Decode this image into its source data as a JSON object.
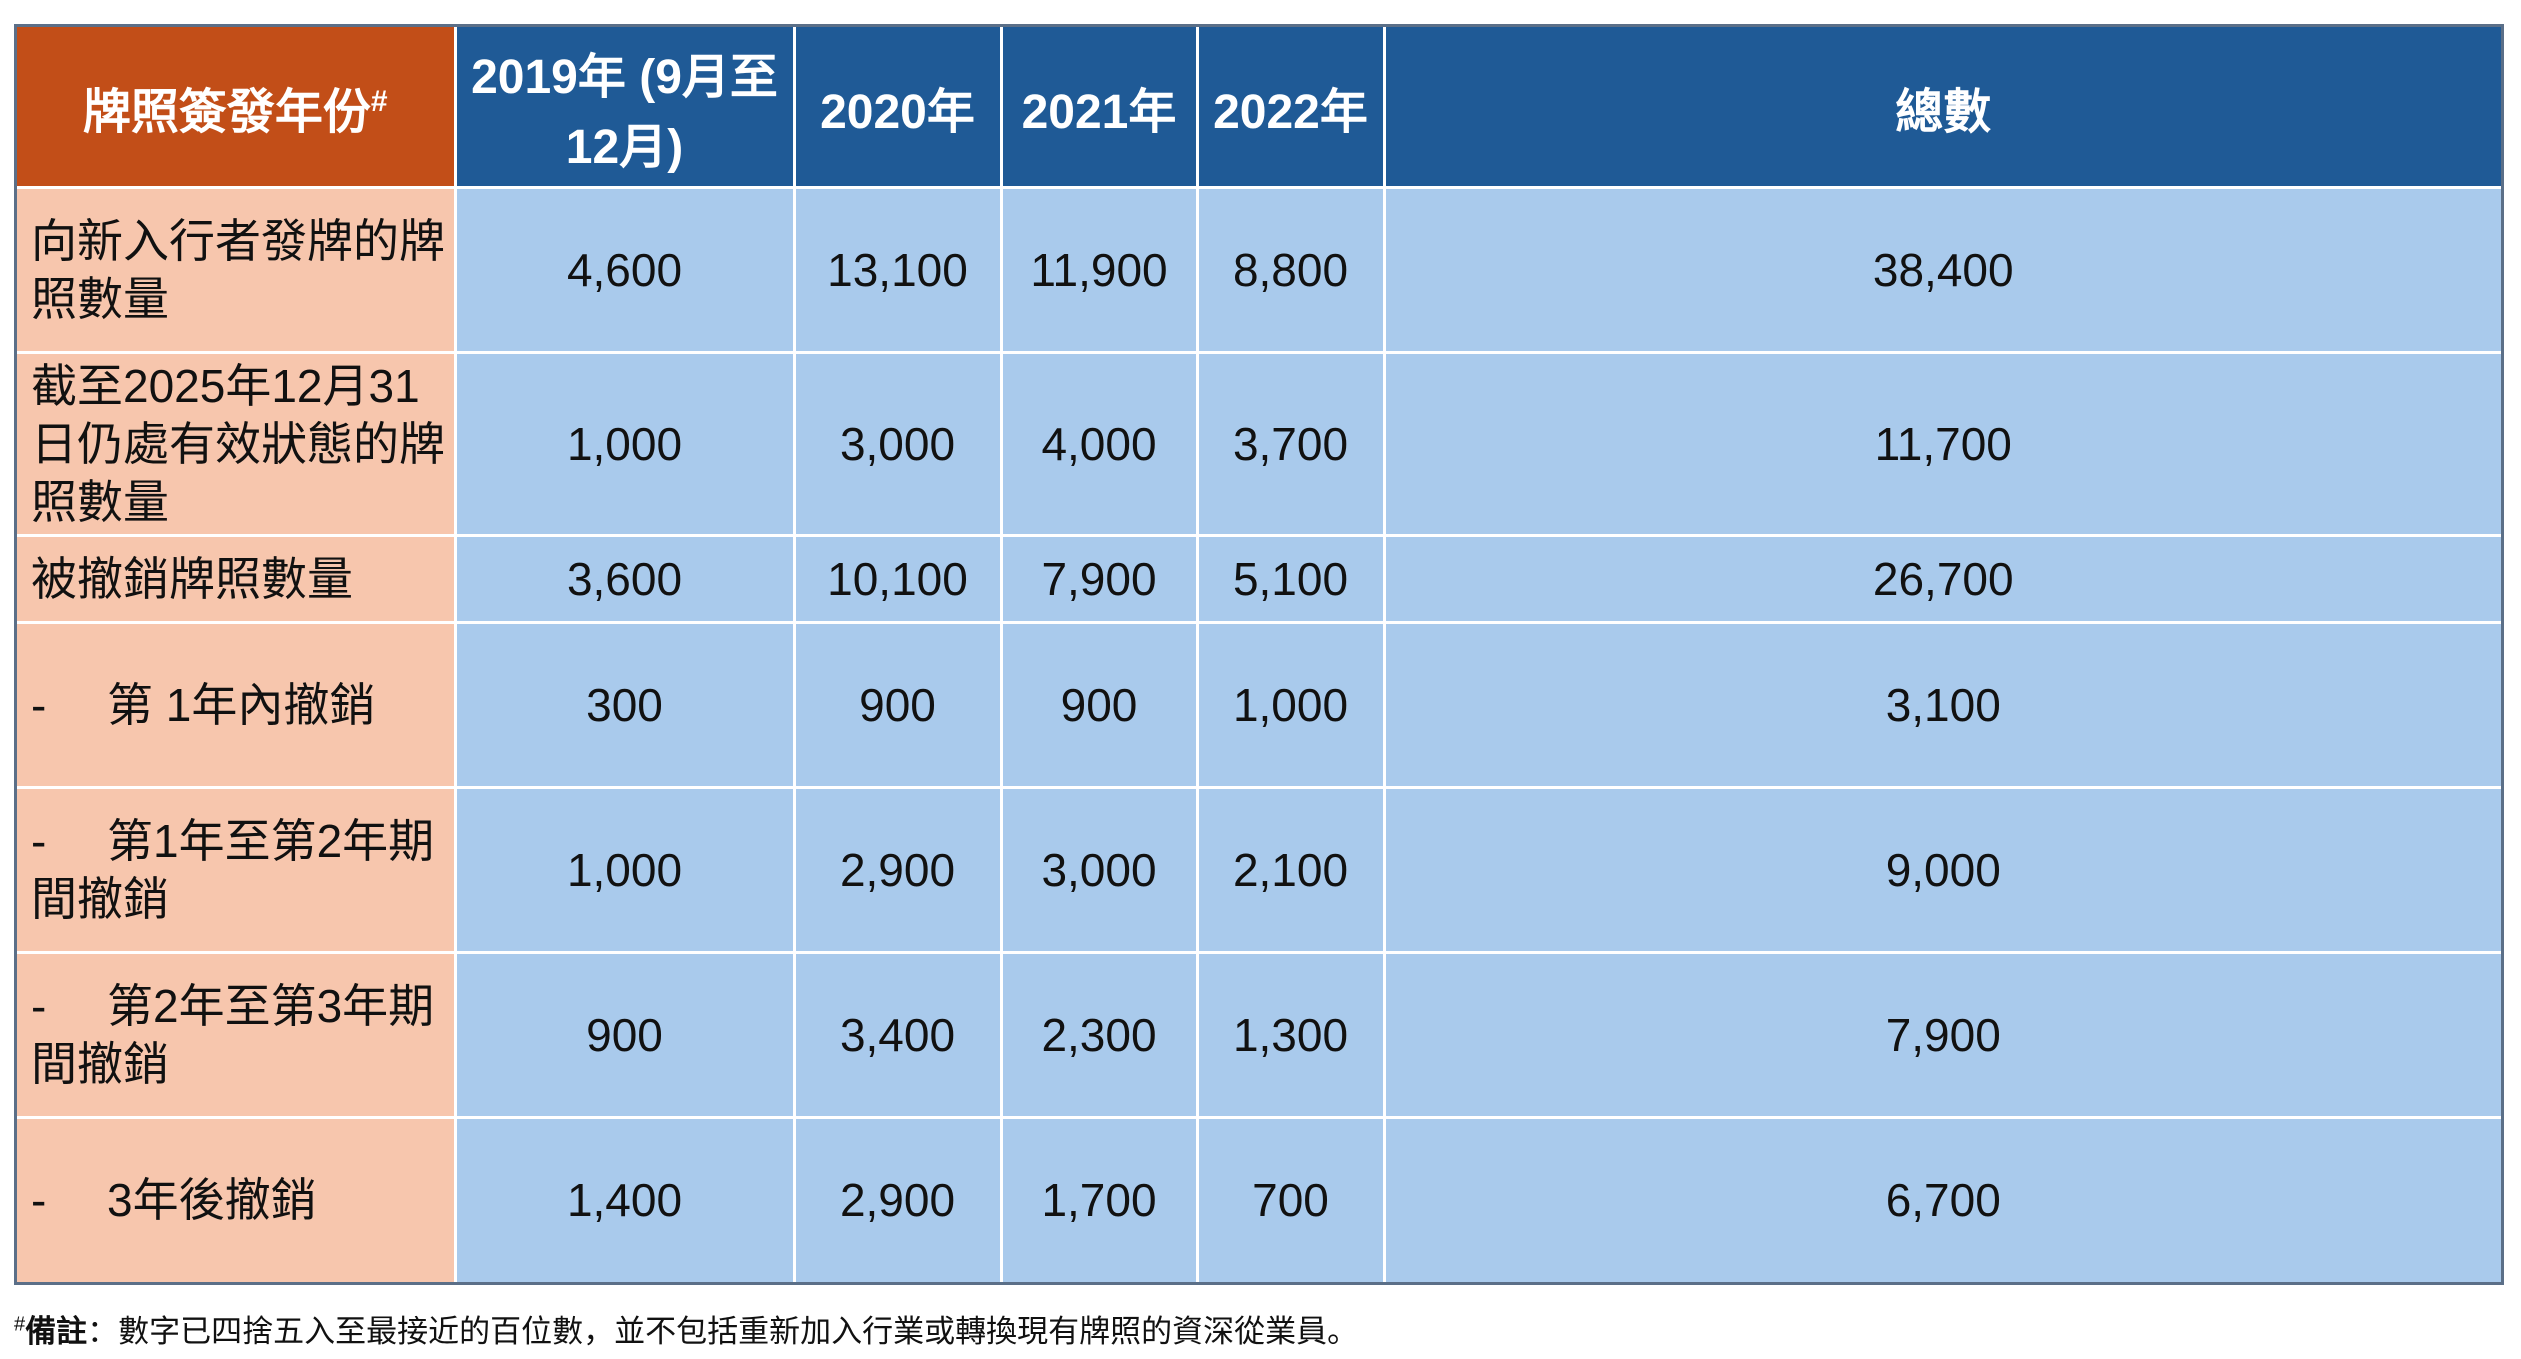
{
  "chart_data": {
    "type": "table",
    "corner_header": "牌照簽發年份",
    "corner_mark": "#",
    "columns": [
      "2019年 (9月至12月)",
      "2020年",
      "2021年",
      "2022年",
      "總數"
    ],
    "rows": [
      {
        "label": "向新入行者發牌的牌照數量",
        "dash": "",
        "values": [
          "4,600",
          "13,100",
          "11,900",
          "8,800",
          "38,400"
        ]
      },
      {
        "label": "截至2025年12月31日仍處有效狀態的牌照數量",
        "dash": "",
        "values": [
          "1,000",
          "3,000",
          "4,000",
          "3,700",
          "11,700"
        ]
      },
      {
        "label": "被撤銷牌照數量",
        "dash": "",
        "values": [
          "3,600",
          "10,100",
          "7,900",
          "5,100",
          "26,700"
        ]
      },
      {
        "label": "第 1年內撤銷",
        "dash": "-",
        "values": [
          "300",
          "900",
          "900",
          "1,000",
          "3,100"
        ]
      },
      {
        "label": "第1年至第2年期間撤銷",
        "dash": "-",
        "values": [
          "1,000",
          "2,900",
          "3,000",
          "2,100",
          "9,000"
        ]
      },
      {
        "label": "第2年至第3年期間撤銷",
        "dash": "-",
        "values": [
          "900",
          "3,400",
          "2,300",
          "1,300",
          "7,900"
        ]
      },
      {
        "label": "3年後撤銷",
        "dash": "-",
        "values": [
          "1,400",
          "2,900",
          "1,700",
          "700",
          "6,700"
        ]
      }
    ]
  },
  "footnote": {
    "mark": "#",
    "title": "備註",
    "text": "：數字已四捨五入至最接近的百位數，並不包括重新加入行業或轉換現有牌照的資深從業員。"
  },
  "colors": {
    "corner_header": "#c24e18",
    "column_header": "#1f5a96",
    "label_cell": "#f7c6ad",
    "value_cell": "#a9caec"
  }
}
